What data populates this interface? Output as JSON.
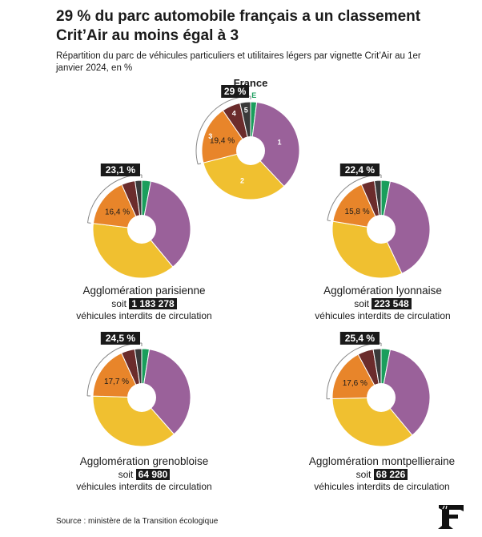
{
  "header": {
    "title": "29 % du parc automobile français a un classement Crit’Air au moins égal à 3",
    "subtitle": "Répartition du parc de véhicules particuliers et utilitaires légers par vignette Crit’Air au 1er janvier 2024, en %"
  },
  "legend": {
    "crit1": "1",
    "crit2": "2",
    "crit3": "3",
    "crit4": "4",
    "crit5": "5",
    "critE": "E"
  },
  "chart_data": [
    {
      "type": "pie",
      "title": "France",
      "categories": [
        "E",
        "1",
        "2",
        "3",
        "4",
        "5"
      ],
      "values": [
        2.0,
        36.0,
        33.0,
        19.4,
        6.1,
        3.5
      ],
      "colors": [
        "#1a9e5c",
        "#9a619a",
        "#f0c030",
        "#e8852a",
        "#6b2c2c",
        "#3a3a3a"
      ],
      "share_crit3_plus": "29 %",
      "crit3_label": "19,4 %"
    },
    {
      "type": "pie",
      "title": "Agglomération parisienne",
      "categories": [
        "E",
        "1",
        "2",
        "3",
        "4",
        "5"
      ],
      "values": [
        3.0,
        36.0,
        37.9,
        16.4,
        4.5,
        2.2
      ],
      "colors": [
        "#1a9e5c",
        "#9a619a",
        "#f0c030",
        "#e8852a",
        "#6b2c2c",
        "#3a3a3a"
      ],
      "share_crit3_plus": "23,1 %",
      "crit3_label": "16,4 %",
      "vehicles_banned": "1 183 278",
      "soit": "soit",
      "caption": "véhicules interdits de circulation"
    },
    {
      "type": "pie",
      "title": "Agglomération lyonnaise",
      "categories": [
        "E",
        "1",
        "2",
        "3",
        "4",
        "5"
      ],
      "values": [
        3.0,
        40.0,
        34.6,
        15.8,
        4.4,
        2.2
      ],
      "colors": [
        "#1a9e5c",
        "#9a619a",
        "#f0c030",
        "#e8852a",
        "#6b2c2c",
        "#3a3a3a"
      ],
      "share_crit3_plus": "22,4 %",
      "crit3_label": "15,8 %",
      "vehicles_banned": "223 548",
      "soit": "soit",
      "caption": "véhicules interdits de circulation"
    },
    {
      "type": "pie",
      "title": "Agglomération grenobloise",
      "categories": [
        "E",
        "1",
        "2",
        "3",
        "4",
        "5"
      ],
      "values": [
        2.5,
        36.0,
        37.0,
        17.7,
        4.5,
        2.3
      ],
      "colors": [
        "#1a9e5c",
        "#9a619a",
        "#f0c030",
        "#e8852a",
        "#6b2c2c",
        "#3a3a3a"
      ],
      "share_crit3_plus": "24,5 %",
      "crit3_label": "17,7 %",
      "vehicles_banned": "64 980",
      "soit": "soit",
      "caption": "véhicules interdits de circulation"
    },
    {
      "type": "pie",
      "title": "Agglomération montpellieraine",
      "categories": [
        "E",
        "1",
        "2",
        "3",
        "4",
        "5"
      ],
      "values": [
        3.0,
        36.0,
        35.6,
        17.6,
        5.2,
        2.6
      ],
      "colors": [
        "#1a9e5c",
        "#9a619a",
        "#f0c030",
        "#e8852a",
        "#6b2c2c",
        "#3a3a3a"
      ],
      "share_crit3_plus": "25,4 %",
      "crit3_label": "17,6 %",
      "vehicles_banned": "68 226",
      "soit": "soit",
      "caption": "véhicules interdits de circulation"
    }
  ],
  "footer": {
    "source": "Source : ministère de la Transition écologique"
  }
}
